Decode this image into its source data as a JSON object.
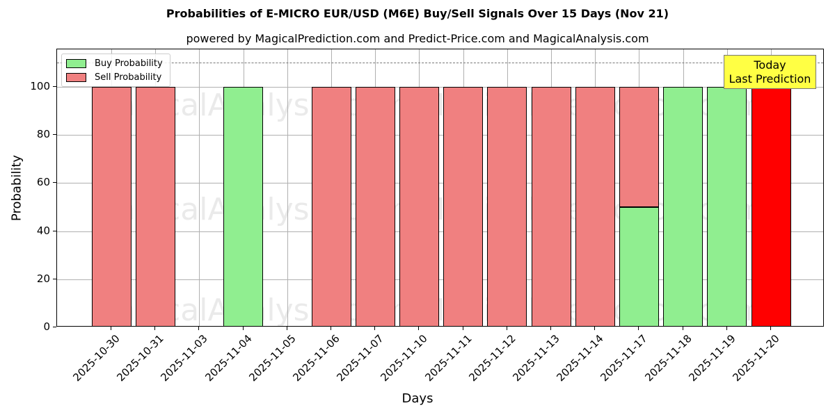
{
  "chart_data": {
    "type": "bar",
    "title": "Probabilities of E-MICRO EUR/USD (M6E) Buy/Sell Signals Over 15 Days (Nov 21)",
    "subtitle": "powered by MagicalPrediction.com and Predict-Price.com and MagicalAnalysis.com",
    "xlabel": "Days",
    "ylabel": "Probability",
    "ylim": [
      0,
      115
    ],
    "yticks": [
      0,
      20,
      40,
      60,
      80,
      100
    ],
    "grid": true,
    "reference_line": {
      "y": 110,
      "style": "dashed"
    },
    "legend_position": "upper left",
    "categories": [
      "2025-10-30",
      "2025-10-31",
      "2025-11-03",
      "2025-11-04",
      "2025-11-05",
      "2025-11-06",
      "2025-11-07",
      "2025-11-10",
      "2025-11-11",
      "2025-11-12",
      "2025-11-13",
      "2025-11-14",
      "2025-11-17",
      "2025-11-18",
      "2025-11-19",
      "2025-11-20"
    ],
    "series": [
      {
        "name": "Buy Probability",
        "color": "#90ee90",
        "values": [
          0,
          0,
          0,
          100,
          0,
          0,
          0,
          0,
          0,
          0,
          0,
          0,
          50,
          100,
          100,
          0
        ]
      },
      {
        "name": "Sell Probability",
        "color": "#f08080",
        "values": [
          100,
          100,
          0,
          0,
          0,
          100,
          100,
          100,
          100,
          100,
          100,
          100,
          50,
          0,
          0,
          100
        ]
      }
    ],
    "highlight": {
      "category": "2025-11-20",
      "color": "#ff0000",
      "annotation": "Today\nLast Prediction"
    },
    "watermarks": [
      "MagicalAnalysis.com",
      "MagicalPrediction.com"
    ]
  },
  "labels": {
    "title": "Probabilities of E-MICRO EUR/USD (M6E) Buy/Sell Signals Over 15 Days (Nov 21)",
    "subtitle": "powered by MagicalPrediction.com and Predict-Price.com and MagicalAnalysis.com",
    "xlabel": "Days",
    "ylabel": "Probability",
    "legend_buy": "Buy Probability",
    "legend_sell": "Sell Probability",
    "today_line1": "Today",
    "today_line2": "Last Prediction",
    "wm_a": "MagicalAnalysis.com",
    "wm_b": "MagicalPrediction.com"
  }
}
